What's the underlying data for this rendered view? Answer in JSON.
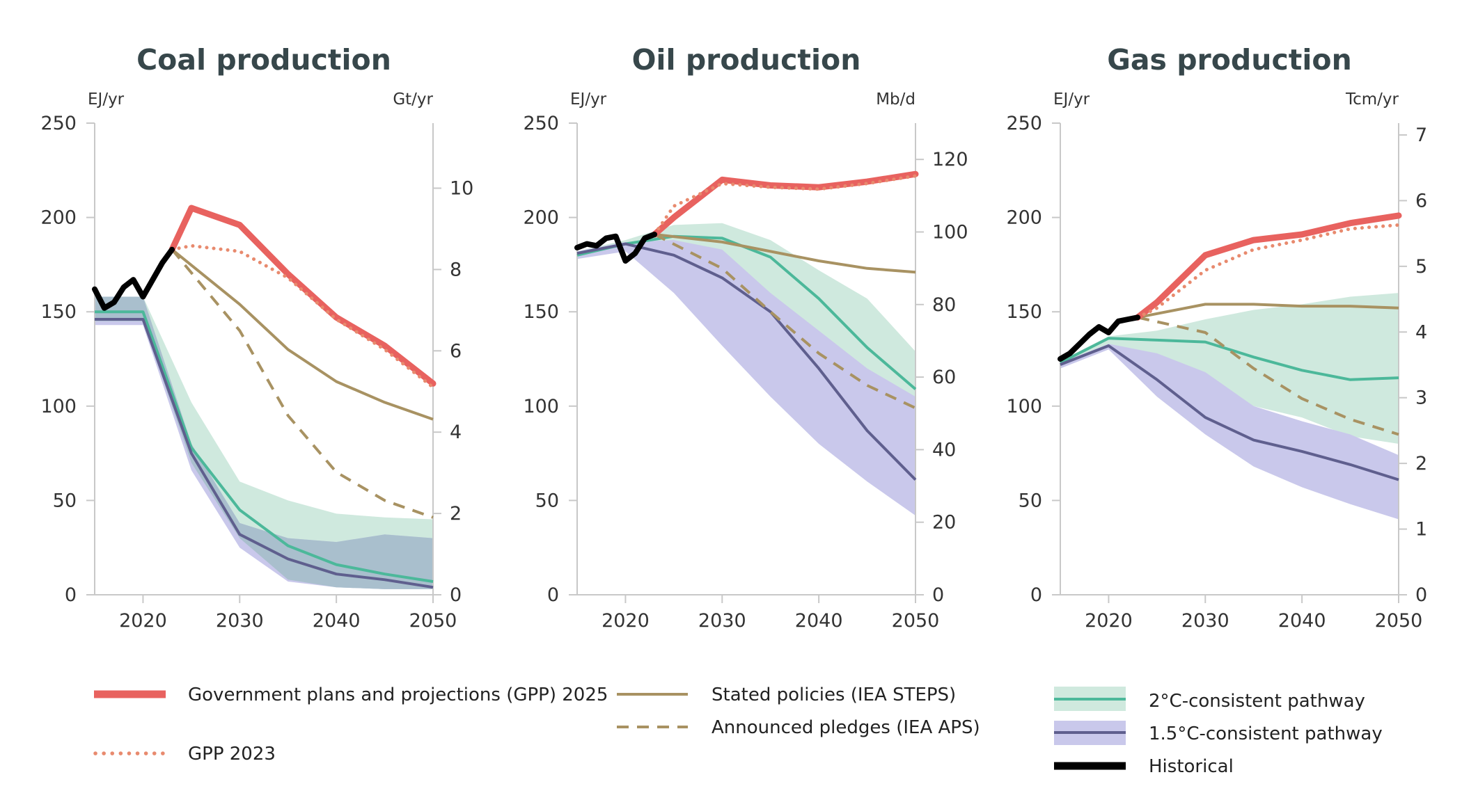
{
  "colors": {
    "gpp2025": "#e8625f",
    "gpp2023": "#e88a6e",
    "steps": "#a89262",
    "aps": "#a89262",
    "two_c_line": "#4cb89a",
    "two_c_band": "#cfe9de",
    "one5_line": "#5f5f8e",
    "one5_band": "#c9c8eb",
    "overlap_band": "#a9bfcd",
    "historical": "#000000",
    "title": "#37474b"
  },
  "legend": {
    "gpp2025": "Government plans and  projections (GPP) 2025",
    "gpp2023": "GPP 2023",
    "steps": "Stated policies (IEA STEPS)",
    "aps": "Announced pledges (IEA APS)",
    "two_c": "2°C-consistent pathway",
    "one5_c": "1.5°C-consistent pathway",
    "historical": "Historical"
  },
  "chart_data": [
    {
      "type": "line",
      "title": "Coal production",
      "left_unit": "EJ/yr",
      "right_unit": "Gt/yr",
      "xlim": [
        2015,
        2050
      ],
      "ylim": [
        0,
        250
      ],
      "x_ticks": [
        2020,
        2030,
        2040,
        2050
      ],
      "y_ticks": [
        0,
        50,
        100,
        150,
        200,
        250
      ],
      "right_ylim": [
        0,
        11.6
      ],
      "right_ticks": [
        0,
        2,
        4,
        6,
        8,
        10
      ],
      "historical": [
        [
          2015,
          162
        ],
        [
          2016,
          152
        ],
        [
          2017,
          155
        ],
        [
          2018,
          163
        ],
        [
          2019,
          167
        ],
        [
          2020,
          158
        ],
        [
          2021,
          167
        ],
        [
          2022,
          176
        ],
        [
          2023,
          183
        ]
      ],
      "gpp2025": [
        [
          2023,
          183
        ],
        [
          2025,
          205
        ],
        [
          2030,
          196
        ],
        [
          2035,
          170
        ],
        [
          2040,
          147
        ],
        [
          2045,
          132
        ],
        [
          2050,
          112
        ]
      ],
      "gpp2023": [
        [
          2023,
          183
        ],
        [
          2025,
          185
        ],
        [
          2030,
          182
        ],
        [
          2035,
          168
        ],
        [
          2040,
          146
        ],
        [
          2045,
          130
        ],
        [
          2050,
          110
        ]
      ],
      "steps": [
        [
          2023,
          183
        ],
        [
          2030,
          154
        ],
        [
          2035,
          130
        ],
        [
          2040,
          113
        ],
        [
          2045,
          102
        ],
        [
          2050,
          93
        ]
      ],
      "aps": [
        [
          2023,
          183
        ],
        [
          2030,
          140
        ],
        [
          2035,
          95
        ],
        [
          2040,
          65
        ],
        [
          2045,
          50
        ],
        [
          2050,
          41
        ]
      ],
      "two_c_median": [
        [
          2015,
          150
        ],
        [
          2020,
          150
        ],
        [
          2025,
          78
        ],
        [
          2030,
          45
        ],
        [
          2035,
          26
        ],
        [
          2040,
          16
        ],
        [
          2045,
          11
        ],
        [
          2050,
          7
        ]
      ],
      "two_c_upper": [
        [
          2015,
          158
        ],
        [
          2020,
          158
        ],
        [
          2025,
          102
        ],
        [
          2030,
          60
        ],
        [
          2035,
          50
        ],
        [
          2040,
          43
        ],
        [
          2045,
          41
        ],
        [
          2050,
          40
        ]
      ],
      "two_c_lower": [
        [
          2015,
          145
        ],
        [
          2020,
          145
        ],
        [
          2025,
          70
        ],
        [
          2030,
          30
        ],
        [
          2035,
          8
        ],
        [
          2040,
          4
        ],
        [
          2045,
          3
        ],
        [
          2050,
          3
        ]
      ],
      "one5_median": [
        [
          2015,
          146
        ],
        [
          2020,
          146
        ],
        [
          2025,
          75
        ],
        [
          2030,
          32
        ],
        [
          2035,
          19
        ],
        [
          2040,
          11
        ],
        [
          2045,
          8
        ],
        [
          2050,
          4
        ]
      ],
      "one5_upper": [
        [
          2015,
          158
        ],
        [
          2020,
          158
        ],
        [
          2025,
          80
        ],
        [
          2030,
          38
        ],
        [
          2035,
          30
        ],
        [
          2040,
          28
        ],
        [
          2045,
          32
        ],
        [
          2050,
          30
        ]
      ],
      "one5_lower": [
        [
          2015,
          143
        ],
        [
          2020,
          143
        ],
        [
          2025,
          66
        ],
        [
          2030,
          25
        ],
        [
          2035,
          7
        ],
        [
          2040,
          4
        ],
        [
          2045,
          3
        ],
        [
          2050,
          3
        ]
      ]
    },
    {
      "type": "line",
      "title": "Oil production",
      "left_unit": "EJ/yr",
      "right_unit": "Mb/d",
      "xlim": [
        2015,
        2050
      ],
      "ylim": [
        0,
        250
      ],
      "x_ticks": [
        2020,
        2030,
        2040,
        2050
      ],
      "y_ticks": [
        0,
        50,
        100,
        150,
        200,
        250
      ],
      "right_ylim": [
        0,
        130
      ],
      "right_ticks": [
        0,
        20,
        40,
        60,
        80,
        100,
        120
      ],
      "historical": [
        [
          2015,
          184
        ],
        [
          2016,
          186
        ],
        [
          2017,
          185
        ],
        [
          2018,
          189
        ],
        [
          2019,
          190
        ],
        [
          2020,
          177
        ],
        [
          2021,
          181
        ],
        [
          2022,
          189
        ],
        [
          2023,
          191
        ]
      ],
      "gpp2025": [
        [
          2023,
          191
        ],
        [
          2025,
          200
        ],
        [
          2030,
          220
        ],
        [
          2035,
          217
        ],
        [
          2040,
          216
        ],
        [
          2045,
          219
        ],
        [
          2050,
          223
        ]
      ],
      "gpp2023": [
        [
          2023,
          191
        ],
        [
          2025,
          206
        ],
        [
          2030,
          218
        ],
        [
          2035,
          216
        ],
        [
          2040,
          215
        ],
        [
          2045,
          218
        ],
        [
          2050,
          222
        ]
      ],
      "steps": [
        [
          2023,
          191
        ],
        [
          2030,
          187
        ],
        [
          2035,
          182
        ],
        [
          2040,
          177
        ],
        [
          2045,
          173
        ],
        [
          2050,
          171
        ]
      ],
      "aps": [
        [
          2023,
          191
        ],
        [
          2030,
          173
        ],
        [
          2035,
          150
        ],
        [
          2040,
          128
        ],
        [
          2045,
          111
        ],
        [
          2050,
          99
        ]
      ],
      "two_c_median": [
        [
          2015,
          180
        ],
        [
          2020,
          186
        ],
        [
          2025,
          190
        ],
        [
          2030,
          189
        ],
        [
          2035,
          179
        ],
        [
          2040,
          157
        ],
        [
          2045,
          131
        ],
        [
          2050,
          109
        ]
      ],
      "two_c_upper": [
        [
          2015,
          182
        ],
        [
          2020,
          188
        ],
        [
          2025,
          196
        ],
        [
          2030,
          197
        ],
        [
          2035,
          188
        ],
        [
          2040,
          172
        ],
        [
          2045,
          157
        ],
        [
          2050,
          129
        ]
      ],
      "two_c_lower": [
        [
          2015,
          178
        ],
        [
          2020,
          184
        ],
        [
          2025,
          178
        ],
        [
          2030,
          168
        ],
        [
          2035,
          150
        ],
        [
          2040,
          128
        ],
        [
          2045,
          110
        ],
        [
          2050,
          88
        ]
      ],
      "one5_median": [
        [
          2015,
          181
        ],
        [
          2020,
          186
        ],
        [
          2025,
          180
        ],
        [
          2030,
          168
        ],
        [
          2035,
          150
        ],
        [
          2040,
          120
        ],
        [
          2045,
          87
        ],
        [
          2050,
          61
        ]
      ],
      "one5_upper": [
        [
          2015,
          182
        ],
        [
          2020,
          187
        ],
        [
          2025,
          188
        ],
        [
          2030,
          183
        ],
        [
          2035,
          160
        ],
        [
          2040,
          140
        ],
        [
          2045,
          120
        ],
        [
          2050,
          105
        ]
      ],
      "one5_lower": [
        [
          2015,
          178
        ],
        [
          2020,
          182
        ],
        [
          2025,
          160
        ],
        [
          2030,
          132
        ],
        [
          2035,
          105
        ],
        [
          2040,
          80
        ],
        [
          2045,
          60
        ],
        [
          2050,
          42
        ]
      ]
    },
    {
      "type": "line",
      "title": "Gas production",
      "left_unit": "EJ/yr",
      "right_unit": "Tcm/yr",
      "xlim": [
        2015,
        2050
      ],
      "ylim": [
        0,
        250
      ],
      "x_ticks": [
        2020,
        2030,
        2040,
        2050
      ],
      "y_ticks": [
        0,
        50,
        100,
        150,
        200,
        250
      ],
      "right_ylim": [
        0,
        7.18
      ],
      "right_ticks": [
        0,
        1,
        2,
        3,
        4,
        5,
        6,
        7
      ],
      "historical": [
        [
          2015,
          125
        ],
        [
          2016,
          128
        ],
        [
          2017,
          133
        ],
        [
          2018,
          138
        ],
        [
          2019,
          142
        ],
        [
          2020,
          139
        ],
        [
          2021,
          145
        ],
        [
          2022,
          146
        ],
        [
          2023,
          147
        ]
      ],
      "gpp2025": [
        [
          2023,
          147
        ],
        [
          2025,
          155
        ],
        [
          2030,
          180
        ],
        [
          2035,
          188
        ],
        [
          2040,
          191
        ],
        [
          2045,
          197
        ],
        [
          2050,
          201
        ]
      ],
      "gpp2023": [
        [
          2023,
          147
        ],
        [
          2025,
          152
        ],
        [
          2030,
          172
        ],
        [
          2035,
          183
        ],
        [
          2040,
          188
        ],
        [
          2045,
          194
        ],
        [
          2050,
          196
        ]
      ],
      "steps": [
        [
          2023,
          147
        ],
        [
          2030,
          154
        ],
        [
          2035,
          154
        ],
        [
          2040,
          153
        ],
        [
          2045,
          153
        ],
        [
          2050,
          152
        ]
      ],
      "aps": [
        [
          2023,
          147
        ],
        [
          2030,
          139
        ],
        [
          2035,
          120
        ],
        [
          2040,
          104
        ],
        [
          2045,
          93
        ],
        [
          2050,
          85
        ]
      ],
      "two_c_median": [
        [
          2015,
          123
        ],
        [
          2020,
          136
        ],
        [
          2025,
          135
        ],
        [
          2030,
          134
        ],
        [
          2035,
          126
        ],
        [
          2040,
          119
        ],
        [
          2045,
          114
        ],
        [
          2050,
          115
        ]
      ],
      "two_c_upper": [
        [
          2015,
          124
        ],
        [
          2020,
          137
        ],
        [
          2025,
          140
        ],
        [
          2030,
          146
        ],
        [
          2035,
          151
        ],
        [
          2040,
          154
        ],
        [
          2045,
          158
        ],
        [
          2050,
          160
        ]
      ],
      "two_c_lower": [
        [
          2015,
          121
        ],
        [
          2020,
          132
        ],
        [
          2025,
          118
        ],
        [
          2030,
          110
        ],
        [
          2035,
          100
        ],
        [
          2040,
          94
        ],
        [
          2045,
          84
        ],
        [
          2050,
          80
        ]
      ],
      "one5_median": [
        [
          2015,
          122
        ],
        [
          2020,
          132
        ],
        [
          2025,
          114
        ],
        [
          2030,
          94
        ],
        [
          2035,
          82
        ],
        [
          2040,
          76
        ],
        [
          2045,
          69
        ],
        [
          2050,
          61
        ]
      ],
      "one5_upper": [
        [
          2015,
          123
        ],
        [
          2020,
          133
        ],
        [
          2025,
          128
        ],
        [
          2030,
          118
        ],
        [
          2035,
          100
        ],
        [
          2040,
          92
        ],
        [
          2045,
          85
        ],
        [
          2050,
          74
        ]
      ],
      "one5_lower": [
        [
          2015,
          120
        ],
        [
          2020,
          130
        ],
        [
          2025,
          105
        ],
        [
          2030,
          85
        ],
        [
          2035,
          68
        ],
        [
          2040,
          57
        ],
        [
          2045,
          48
        ],
        [
          2050,
          40
        ]
      ]
    }
  ]
}
